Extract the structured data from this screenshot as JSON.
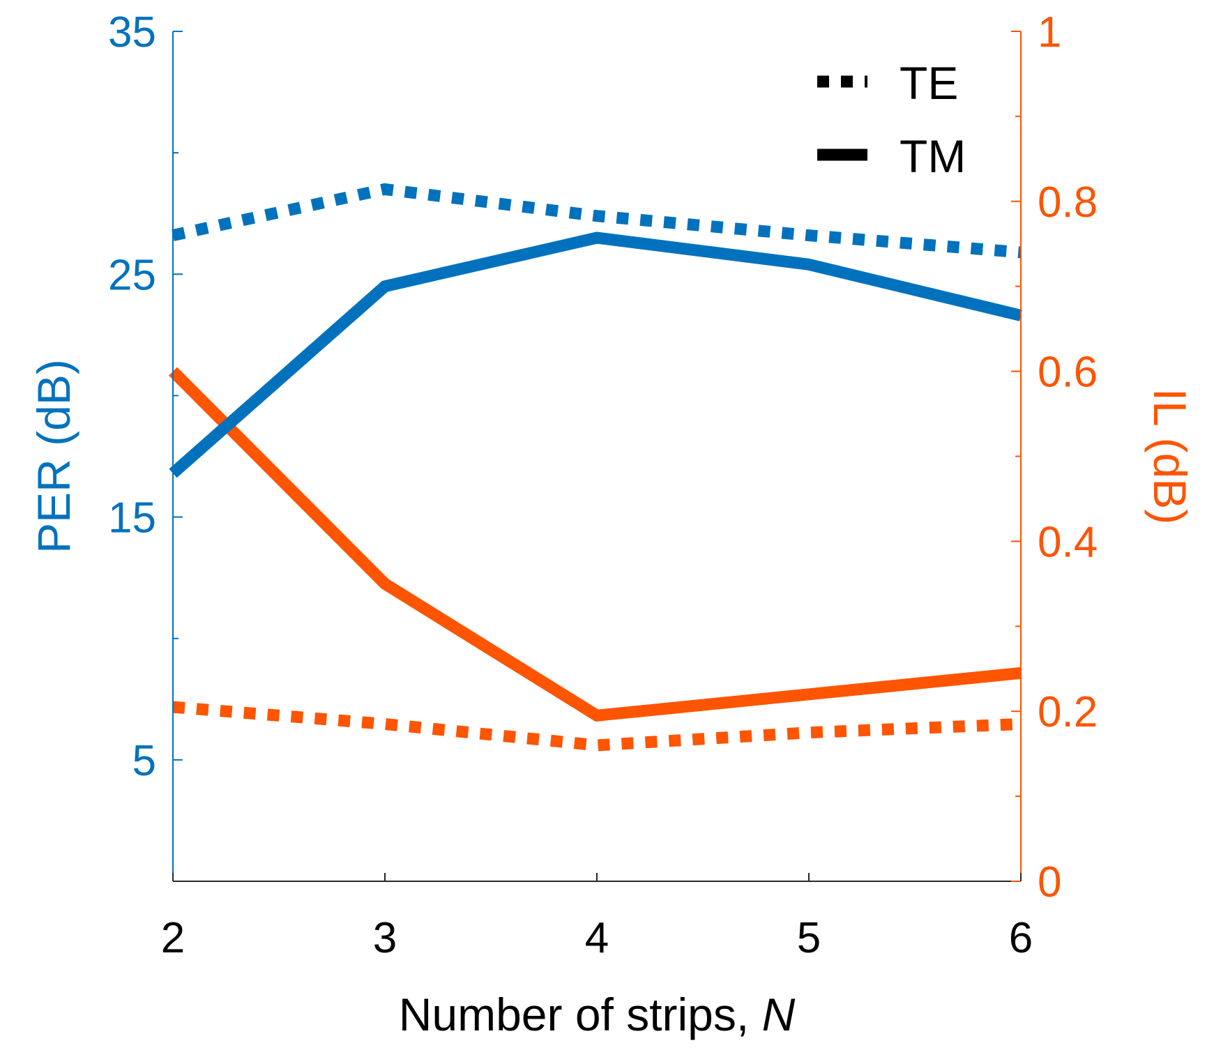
{
  "chart_data": {
    "type": "line",
    "xlabel": "Number of strips, ",
    "xlabel_var": "N",
    "x": [
      2,
      3,
      4,
      5,
      6
    ],
    "x_ticks": [
      "2",
      "3",
      "4",
      "5",
      "6"
    ],
    "xlim": [
      2,
      6
    ],
    "y_left": {
      "label": "PER (dB)",
      "color": "#0072BD",
      "lim": [
        0,
        35
      ],
      "ticks": [
        5,
        15,
        25,
        35
      ],
      "tick_labels": [
        "5",
        "15",
        "25",
        "35"
      ],
      "minor_ticks": [
        10,
        20,
        30
      ]
    },
    "y_right": {
      "label": "IL (dB)",
      "color": "#FF5400",
      "lim": [
        0,
        1
      ],
      "ticks": [
        0,
        0.2,
        0.4,
        0.6,
        0.8,
        1
      ],
      "tick_labels": [
        "0",
        "0.2",
        "0.4",
        "0.6",
        "0.8",
        "1"
      ],
      "minor_ticks": [
        0.1,
        0.3,
        0.5,
        0.7,
        0.9
      ]
    },
    "series": [
      {
        "name": "PER TE",
        "axis": "left",
        "style": "dotted",
        "color": "#0072BD",
        "values": [
          26.6,
          28.5,
          27.4,
          26.6,
          25.9
        ]
      },
      {
        "name": "PER TM",
        "axis": "left",
        "style": "solid",
        "color": "#0072BD",
        "values": [
          16.8,
          24.5,
          26.5,
          25.4,
          23.3
        ]
      },
      {
        "name": "IL TE",
        "axis": "right",
        "style": "dotted",
        "color": "#FF5400",
        "values": [
          0.205,
          0.185,
          0.16,
          0.175,
          0.185
        ]
      },
      {
        "name": "IL TM",
        "axis": "right",
        "style": "solid",
        "color": "#FF5400",
        "values": [
          0.6,
          0.35,
          0.195,
          0.22,
          0.245
        ]
      }
    ],
    "legend": {
      "position": "top-right",
      "entries": [
        {
          "label": "TE",
          "style": "dotted"
        },
        {
          "label": "TM",
          "style": "solid"
        }
      ]
    }
  }
}
